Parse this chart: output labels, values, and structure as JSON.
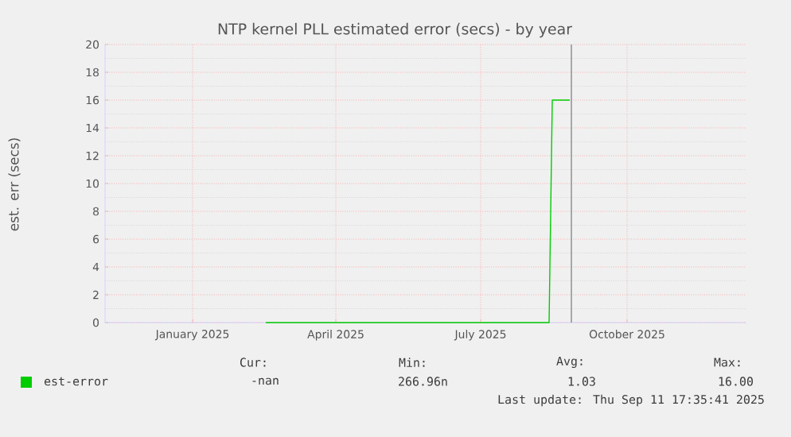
{
  "chart_data": {
    "type": "line",
    "title": "NTP kernel PLL estimated error (secs) - by year",
    "ylabel": "est. err (secs)",
    "series": [
      {
        "name": "est-error",
        "color": "#00cc00",
        "x": [
          "2025-03-03",
          "2025-08-28",
          "2025-08-30",
          "2025-09-10"
        ],
        "values": [
          0,
          0,
          16,
          16
        ]
      }
    ],
    "xlim": [
      "2024-11-22",
      "2025-12-30"
    ],
    "xticks": [
      {
        "value": "2025-01-16",
        "label": "January 2025"
      },
      {
        "value": "2025-04-16",
        "label": "April 2025"
      },
      {
        "value": "2025-07-16",
        "label": "July 2025"
      },
      {
        "value": "2025-10-16",
        "label": "October 2025"
      }
    ],
    "ylim": [
      0,
      20
    ],
    "yticks": [
      0,
      2,
      4,
      6,
      8,
      10,
      12,
      14,
      16,
      18,
      20
    ],
    "ref_lines": [
      {
        "axis": "x",
        "value": "2025-09-11",
        "color": "#888888"
      }
    ],
    "grid": true,
    "legend": "bottom",
    "annotations": [
      "Cur:",
      "Min:",
      "Avg:",
      "Max:",
      "-nan",
      "266.96n",
      "1.03",
      "16.00",
      "Last update: Thu Sep 11 17:35:41 2025"
    ]
  }
}
